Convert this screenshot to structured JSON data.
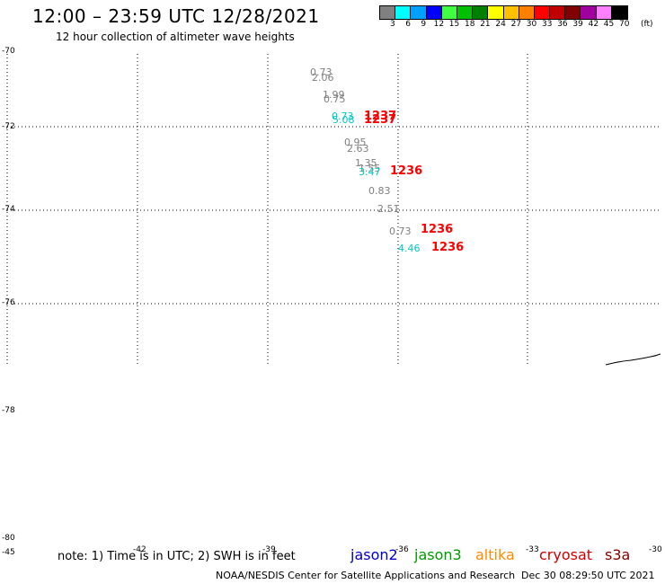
{
  "title": "12:00 – 23:59 UTC 12/28/2021",
  "subtitle": "12 hour collection of altimeter wave heights",
  "color_scale": {
    "labels": [
      "3",
      "6",
      "9",
      "12",
      "15",
      "18",
      "21",
      "24",
      "27",
      "30",
      "33",
      "36",
      "39",
      "42",
      "45",
      "70"
    ],
    "unit": "(ft)",
    "colors": [
      "#808080",
      "#00ffff",
      "#00a0ff",
      "#0000ff",
      "#40ff40",
      "#00c000",
      "#008000",
      "#ffff00",
      "#ffc000",
      "#ff8000",
      "#ff0000",
      "#c00000",
      "#800000",
      "#a000a0",
      "#ff80ff",
      "#000000"
    ]
  },
  "lat_labels": [
    "-70",
    "-72",
    "-74",
    "-76",
    "-78",
    "-80",
    "-45"
  ],
  "lon_labels": [
    "-42",
    "-39",
    "-36",
    "-33",
    "-30"
  ],
  "observations": [
    {
      "text": "0.73",
      "color": "#808080"
    },
    {
      "text": "2.06",
      "color": "#808080"
    },
    {
      "text": "1.99",
      "color": "#808080"
    },
    {
      "text": "0.75",
      "color": "#808080"
    },
    {
      "text": "0.73",
      "color": "#00c8c8"
    },
    {
      "text": "5.08",
      "color": "#00c8c8"
    },
    {
      "text": "0.95",
      "color": "#808080"
    },
    {
      "text": "2.63",
      "color": "#808080"
    },
    {
      "text": "1.35",
      "color": "#808080"
    },
    {
      "text": "1.55",
      "color": "#808080"
    },
    {
      "text": "3.47",
      "color": "#00c8c8"
    },
    {
      "text": "0.83",
      "color": "#808080"
    },
    {
      "text": "2.51",
      "color": "#808080"
    },
    {
      "text": "0.73",
      "color": "#808080"
    },
    {
      "text": "4.46",
      "color": "#00c8c8"
    }
  ],
  "pass_labels": [
    "1237",
    "1237",
    "1236",
    "1236",
    "1236"
  ],
  "note": "note: 1) Time is in UTC; 2) SWH is in feet",
  "satellites": [
    {
      "name": "jason2",
      "color": "#0000cc"
    },
    {
      "name": "jason3",
      "color": "#009900"
    },
    {
      "name": "altika",
      "color": "#ff8c00"
    },
    {
      "name": "cryosat",
      "color": "#cc0000"
    },
    {
      "name": "s3a",
      "color": "#800000"
    }
  ],
  "credit": "NOAA/NESDIS Center for Satellite Applications and Research",
  "timestamp": "Dec 30 08:29:50 UTC 2021"
}
